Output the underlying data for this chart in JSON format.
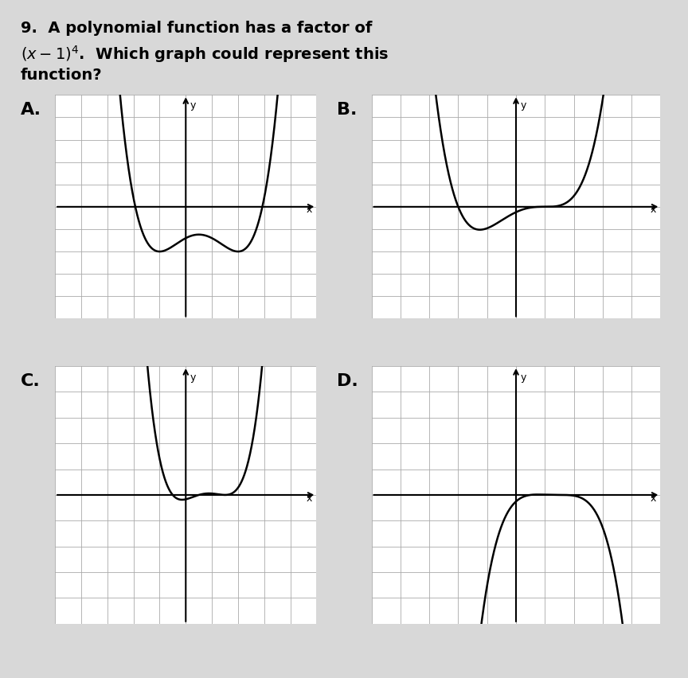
{
  "title": "9.  A polynomial function has a factor of\n(x − 1)⁴.  Which graph could represent this\nfunction?",
  "bg_color": "#e8e8e8",
  "grid_color": "#999999",
  "axis_color": "#000000",
  "curve_color": "#000000",
  "label_A": "A.",
  "label_B": "B.",
  "label_C": "C.",
  "label_D": "D.",
  "xlim": [
    -5,
    5
  ],
  "ylim": [
    -5,
    5
  ],
  "grid_ticks": 10
}
